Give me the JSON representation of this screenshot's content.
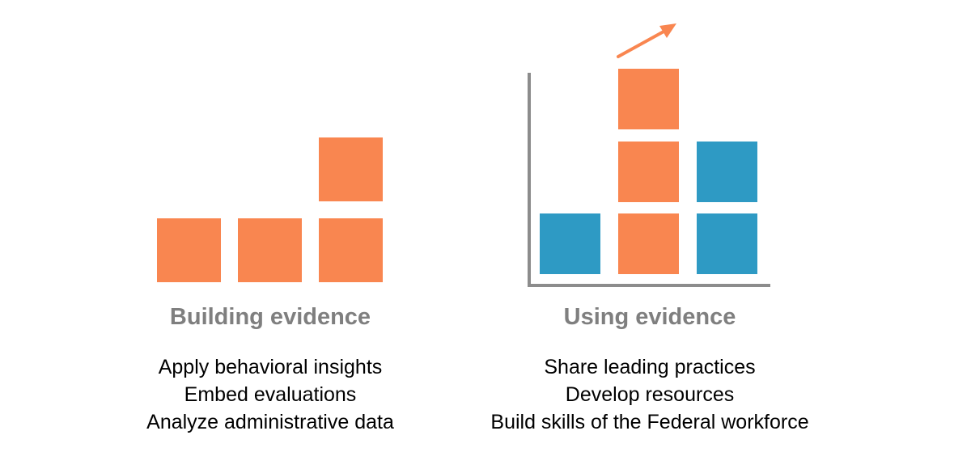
{
  "building": {
    "title": "Building evidence",
    "items": [
      "Apply behavioral insights",
      "Embed evaluations",
      "Analyze administrative data"
    ]
  },
  "using": {
    "title": "Using evidence",
    "items": [
      "Share leading practices",
      "Develop resources",
      "Build skills of the Federal workforce"
    ]
  },
  "colors": {
    "orange": "#f98650",
    "blue": "#2e9ac4",
    "axis": "#8c8c8c",
    "heading": "#7f7f7f"
  }
}
